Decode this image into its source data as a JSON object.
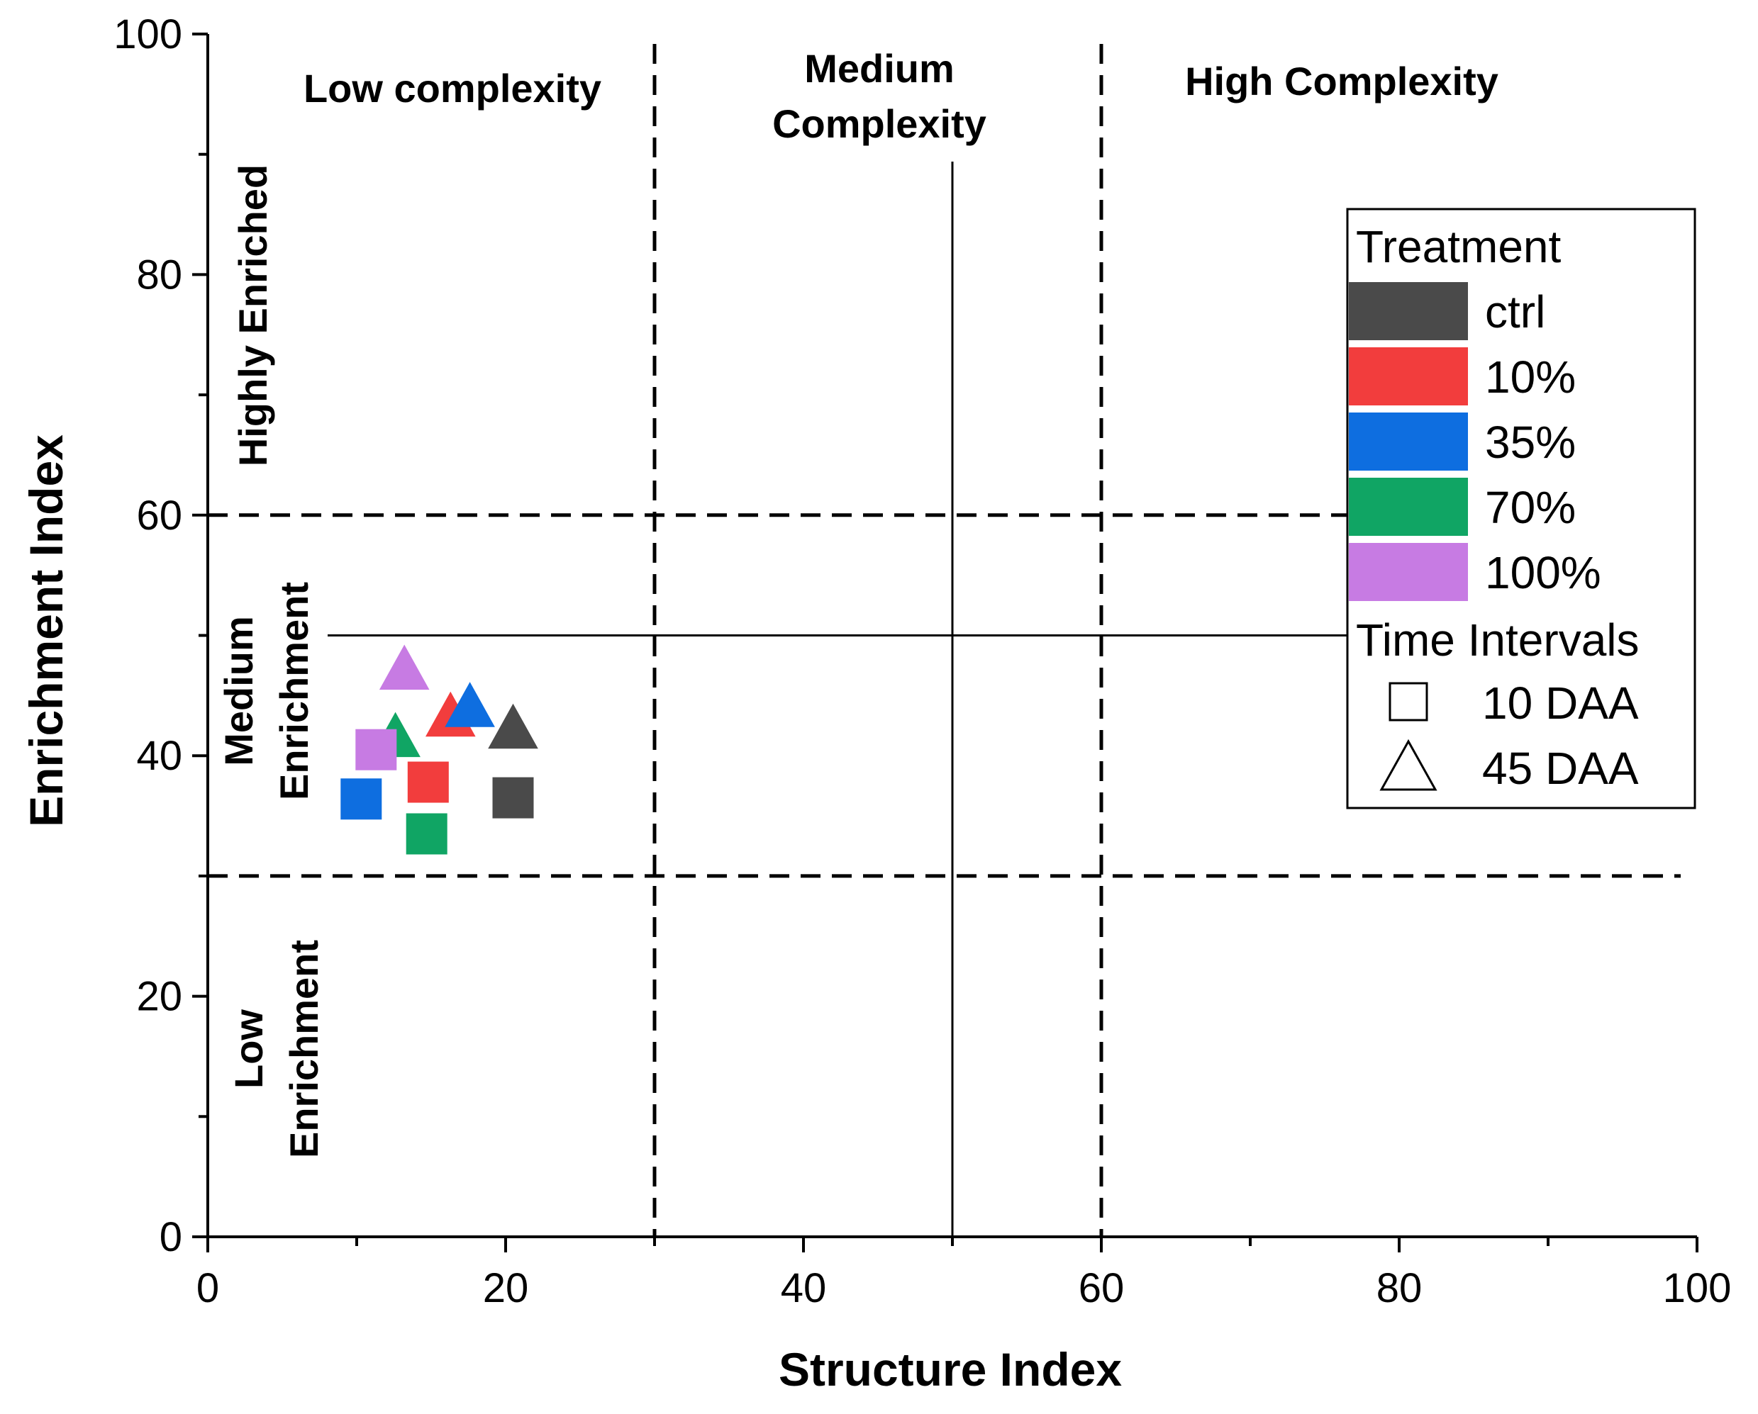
{
  "chart_data": {
    "type": "scatter",
    "xlabel": "Structure Index",
    "ylabel": "Enrichment Index",
    "xlim": [
      0,
      100
    ],
    "ylim": [
      0,
      100
    ],
    "x_ticks": [
      0,
      20,
      40,
      60,
      80,
      100
    ],
    "y_ticks": [
      0,
      20,
      40,
      60,
      80,
      100
    ],
    "x_tick_labels": [
      "0",
      "20",
      "40",
      "60",
      "80",
      "100"
    ],
    "y_tick_labels": [
      "0",
      "20",
      "40",
      "60",
      "80",
      "100"
    ],
    "dashed_vertical_at": [
      30,
      60
    ],
    "dashed_horizontal_at": [
      30,
      60
    ],
    "solid_vertical_at": 50,
    "solid_horizontal_at": 50,
    "region_labels": {
      "low_complexity": "Low complexity",
      "medium_complexity": [
        "Medium",
        "Complexity"
      ],
      "high_complexity": "High Complexity",
      "highly_enriched": "Highly Enriched",
      "medium_enrichment": [
        "Medium",
        "Enrichment"
      ],
      "low_enrichment": [
        "Low",
        "Enrichment"
      ]
    },
    "legend": {
      "treatment_title": "Treatment",
      "treatments": [
        {
          "label": "ctrl",
          "color": "#4a4a4a"
        },
        {
          "label": "10%",
          "color": "#f23d3d"
        },
        {
          "label": "35%",
          "color": "#0e6ee0"
        },
        {
          "label": "70%",
          "color": "#10a564"
        },
        {
          "label": "100%",
          "color": "#c77be3"
        }
      ],
      "time_title": "Time Intervals",
      "times": [
        {
          "label": "10 DAA",
          "marker": "square"
        },
        {
          "label": "45 DAA",
          "marker": "triangle"
        }
      ]
    },
    "series": [
      {
        "name": "ctrl",
        "color": "#4a4a4a",
        "points": [
          {
            "time": "10 DAA",
            "x": 20.5,
            "y": 36.5
          },
          {
            "time": "45 DAA",
            "x": 20.5,
            "y": 42.0
          }
        ]
      },
      {
        "name": "10%",
        "color": "#f23d3d",
        "points": [
          {
            "time": "10 DAA",
            "x": 14.8,
            "y": 37.8
          },
          {
            "time": "45 DAA",
            "x": 16.3,
            "y": 43.0
          }
        ]
      },
      {
        "name": "35%",
        "color": "#0e6ee0",
        "points": [
          {
            "time": "10 DAA",
            "x": 10.3,
            "y": 36.4
          },
          {
            "time": "45 DAA",
            "x": 17.6,
            "y": 43.8
          }
        ]
      },
      {
        "name": "70%",
        "color": "#10a564",
        "points": [
          {
            "time": "10 DAA",
            "x": 14.7,
            "y": 33.5
          },
          {
            "time": "45 DAA",
            "x": 12.6,
            "y": 41.3
          }
        ]
      },
      {
        "name": "100%",
        "color": "#c77be3",
        "points": [
          {
            "time": "10 DAA",
            "x": 11.3,
            "y": 40.5
          },
          {
            "time": "45 DAA",
            "x": 13.2,
            "y": 46.9
          }
        ]
      }
    ]
  }
}
